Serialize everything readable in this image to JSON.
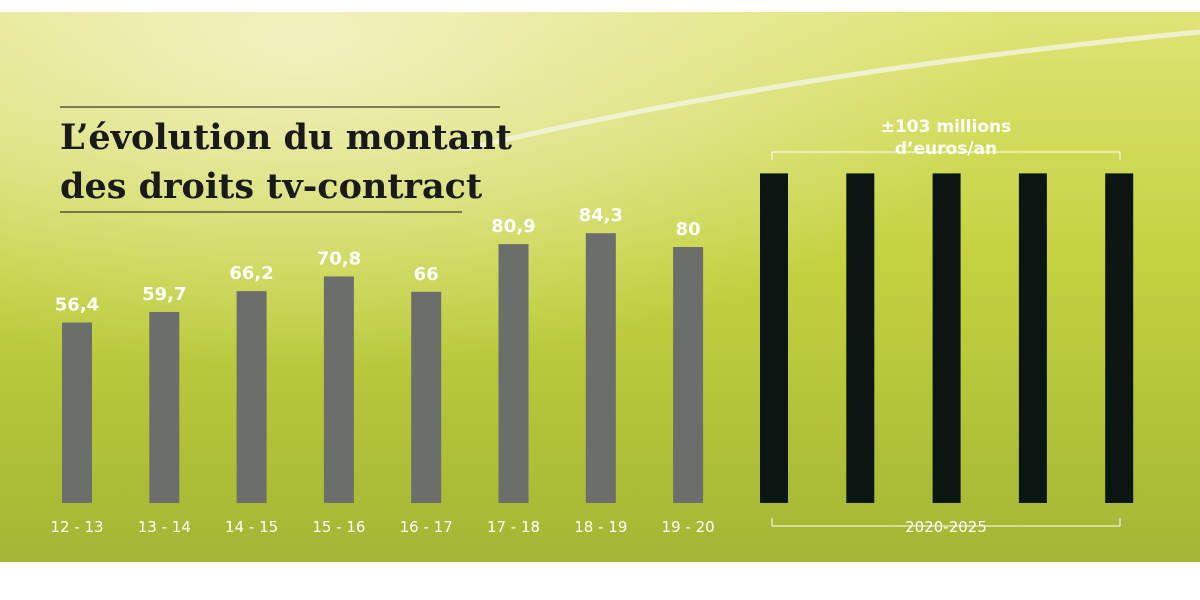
{
  "title": {
    "line1": "L’évolution du montant",
    "line2": "des droits tv-contract"
  },
  "colors": {
    "historic_bar": "#6b6e6b",
    "future_bar": "#0b1612",
    "grass_light": "#d6df5a",
    "grass_dark": "#9fb23a",
    "label": "#ffffff",
    "title": "#1a1a1a"
  },
  "chart_data": {
    "type": "bar",
    "title": "L’évolution du montant des droits tv-contract",
    "xlabel": "",
    "ylabel": "",
    "ylim": [
      0,
      115
    ],
    "grid": false,
    "categories": [
      "12 - 13",
      "13 - 14",
      "14 - 15",
      "15 - 16",
      "16 - 17",
      "17 - 18",
      "18 - 19",
      "19 - 20"
    ],
    "values": [
      56.4,
      59.7,
      66.2,
      70.8,
      66,
      80.9,
      84.3,
      80
    ],
    "value_labels": [
      "56,4",
      "59,7",
      "66,2",
      "70,8",
      "66",
      "80,9",
      "84,3",
      "80"
    ],
    "projection": {
      "category_label": "2020-2025",
      "bar_count": 5,
      "value_per_year": 103,
      "annotation_line1": "±103 millions",
      "annotation_line2": "d’euros/an"
    }
  }
}
